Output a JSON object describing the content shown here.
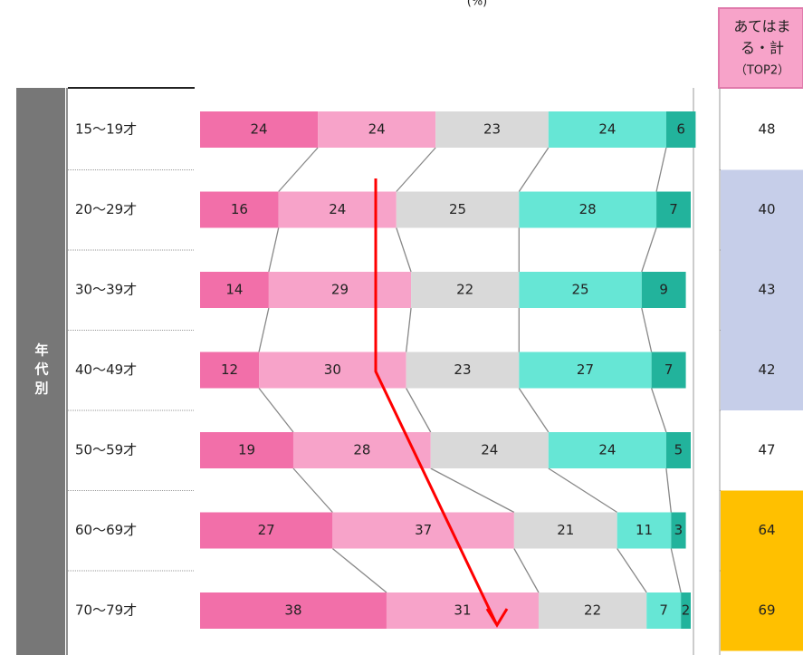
{
  "chart_data": {
    "type": "stacked-bar",
    "unit": "(%)",
    "group_label": "年代別",
    "categories": [
      "15～19才",
      "20～29才",
      "30～39才",
      "40～49才",
      "50～59才",
      "60～69才",
      "70～79才"
    ],
    "xlim": [
      0,
      100
    ],
    "series": [
      {
        "color": "#f26fa9",
        "values": [
          24,
          16,
          14,
          12,
          19,
          27,
          38
        ]
      },
      {
        "color": "#f7a3c9",
        "values": [
          24,
          24,
          29,
          30,
          28,
          37,
          31
        ]
      },
      {
        "color": "#d9d9d9",
        "values": [
          23,
          25,
          22,
          23,
          24,
          21,
          22
        ]
      },
      {
        "color": "#66e6d5",
        "values": [
          24,
          28,
          25,
          27,
          24,
          11,
          7
        ]
      },
      {
        "color": "#22b39c",
        "values": [
          6,
          7,
          9,
          7,
          5,
          3,
          2
        ]
      }
    ],
    "top2": {
      "header": [
        "あてはま",
        "る・計",
        "（TOP2）"
      ],
      "header_color": "#f7a3c9",
      "values": [
        48,
        40,
        43,
        42,
        47,
        64,
        69
      ],
      "colors": [
        "#ffffff",
        "#c6cee9",
        "#c6cee9",
        "#c6cee9",
        "#ffffff",
        "#ffc000",
        "#ffc000"
      ]
    }
  }
}
